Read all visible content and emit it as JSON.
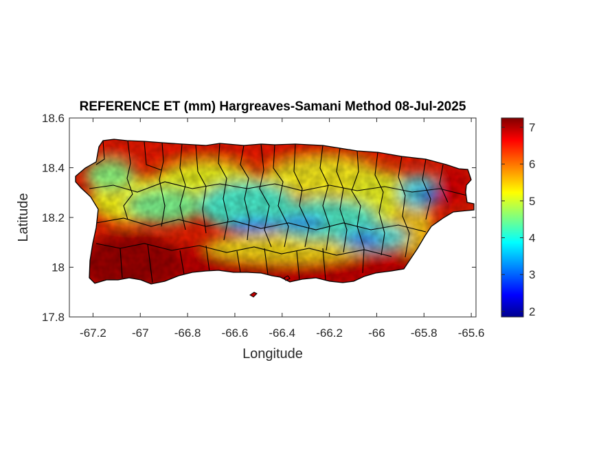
{
  "title": "REFERENCE ET (mm) Hargreaves-Samani Method  08-Jul-2025",
  "xlabel": "Longitude",
  "ylabel": "Latitude",
  "xlim": [
    -67.3,
    -65.58
  ],
  "ylim": [
    17.8,
    18.6
  ],
  "x_ticks": [
    {
      "value": -67.2,
      "label": "-67.2"
    },
    {
      "value": -67.0,
      "label": "-67"
    },
    {
      "value": -66.8,
      "label": "-66.8"
    },
    {
      "value": -66.6,
      "label": "-66.6"
    },
    {
      "value": -66.4,
      "label": "-66.4"
    },
    {
      "value": -66.2,
      "label": "-66.2"
    },
    {
      "value": -66.0,
      "label": "-66"
    },
    {
      "value": -65.8,
      "label": "-65.8"
    },
    {
      "value": -65.6,
      "label": "-65.6"
    }
  ],
  "y_ticks": [
    {
      "value": 17.8,
      "label": "17.8"
    },
    {
      "value": 18.0,
      "label": "18"
    },
    {
      "value": 18.2,
      "label": "18.2"
    },
    {
      "value": 18.4,
      "label": "18.4"
    },
    {
      "value": 18.6,
      "label": "18.6"
    }
  ],
  "colorbar": {
    "colormap": "jet",
    "range": [
      1.85,
      7.25
    ],
    "ticks": [
      {
        "value": 2,
        "label": "2"
      },
      {
        "value": 3,
        "label": "3"
      },
      {
        "value": 4,
        "label": "4"
      },
      {
        "value": 5,
        "label": "5"
      },
      {
        "value": 6,
        "label": "6"
      },
      {
        "value": 7,
        "label": "7"
      }
    ],
    "stops": [
      "#00008f",
      "#0000ff",
      "#00ffff",
      "#ffff00",
      "#ff0000",
      "#800000"
    ]
  },
  "colors": {
    "axes": "#262626",
    "municipal_borders": "#000000",
    "background": "#ffffff"
  }
}
